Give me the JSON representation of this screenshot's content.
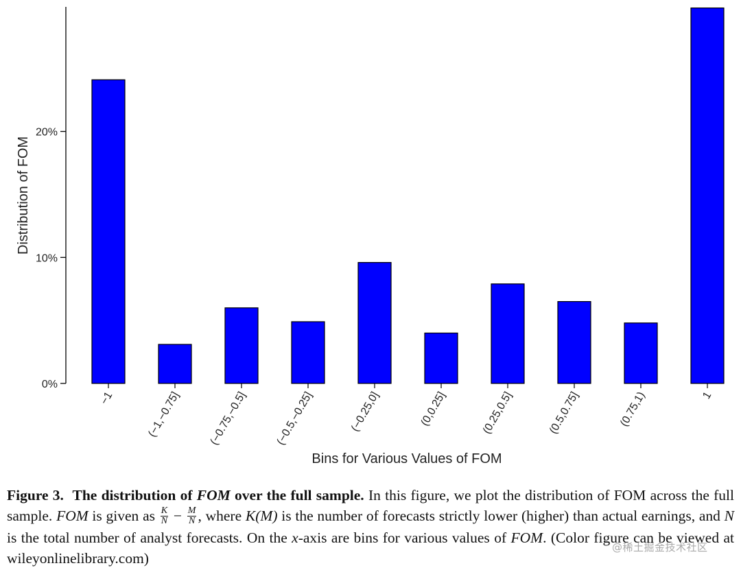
{
  "chart_data": {
    "type": "bar",
    "categories": [
      "−1",
      "(−1,−0.75]",
      "(−0.75,−0.5]",
      "(−0.5,−0.25]",
      "(−0.25,0]",
      "(0,0.25]",
      "(0.25,0.5]",
      "(0.5,0.75]",
      "(0.75,1)",
      "1"
    ],
    "values": [
      24.1,
      3.1,
      6.0,
      4.9,
      9.6,
      4.0,
      7.9,
      6.5,
      4.8,
      29.8
    ],
    "title": "",
    "xlabel": "Bins for Various Values of FOM",
    "ylabel": "Distribution of FOM",
    "yticks": [
      0,
      10,
      20
    ],
    "ytick_labels": [
      "0%",
      "10%",
      "20%"
    ],
    "ylim": [
      0,
      30
    ],
    "grid": false,
    "bar_color": "#0000ff",
    "bar_edge_color": "#000000"
  },
  "caption": {
    "label": "Figure 3.",
    "title_a": "The distribution of ",
    "title_fom": "FOM",
    "title_b": " over the full sample.",
    "t1": " In this figure, we plot the distribution of FOM across the full sample. ",
    "fom1": "FOM",
    "t2": " is given as ",
    "frac1_num": "K",
    "frac1_den": "N",
    "minus": " − ",
    "frac2_num": "M",
    "frac2_den": "N",
    "t3": ", where ",
    "km": "K(M)",
    "t4": " is the number of forecasts strictly lower (higher) than actual earnings, and ",
    "n": "N",
    "t5": " is the total number of analyst forecasts. On the ",
    "xaxis": "x",
    "t6": "-axis are bins for various values of ",
    "fom2": "FOM",
    "t7": ". (Color figure can be viewed at wileyonlinelibrary.com)"
  },
  "watermark": "@稀土掘金技术社区"
}
